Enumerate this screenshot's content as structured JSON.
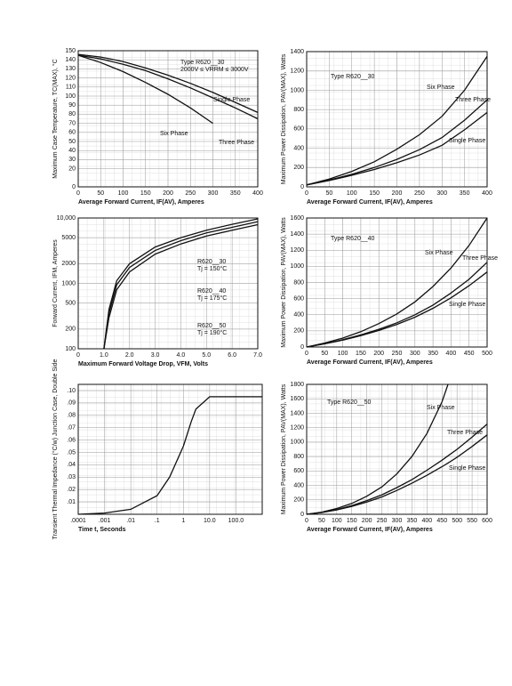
{
  "chart_data": [
    {
      "type": "line",
      "x_label": "Average Forward Current, IF(AV), Amperes",
      "y_label": "Maximum Case Temperature, TC(MAX), °C",
      "annotations": [
        "Type R620__30",
        "2000V ≤ VRRM ≤ 3000V"
      ],
      "x": [
        0,
        50,
        100,
        150,
        200,
        250,
        300,
        350,
        400
      ],
      "series": [
        {
          "name": "Single Phase",
          "color": "#111",
          "values": [
            146,
            143,
            138,
            131,
            123,
            114,
            104,
            93,
            82
          ]
        },
        {
          "name": "Three Phase",
          "color": "#111",
          "values": [
            145,
            141,
            135,
            128,
            119,
            109,
            98,
            87,
            75
          ]
        },
        {
          "name": "Six Phase",
          "color": "#111",
          "values": [
            145,
            137,
            127,
            115,
            102,
            87,
            70,
            null,
            null
          ]
        }
      ],
      "xlim": [
        0,
        400
      ],
      "xticks": [
        0,
        50,
        100,
        150,
        200,
        250,
        300,
        350,
        400
      ],
      "ylim": [
        0,
        150
      ],
      "yticks": [
        0,
        20,
        30,
        40,
        50,
        60,
        70,
        80,
        90,
        100,
        110,
        120,
        130,
        140,
        150
      ],
      "grid": true
    },
    {
      "type": "line",
      "x_label": "Average Forward Current, IF(AV), Amperes",
      "y_label": "Maximum Power Dissipation, PAV(MAX), Watts",
      "annotations": [
        "Type R620__30"
      ],
      "x": [
        0,
        50,
        100,
        150,
        200,
        250,
        300,
        350,
        400
      ],
      "series": [
        {
          "name": "Six Phase",
          "color": "#111",
          "values": [
            20,
            80,
            160,
            260,
            390,
            540,
            730,
            1000,
            1350
          ]
        },
        {
          "name": "Three Phase",
          "color": "#111",
          "values": [
            20,
            70,
            130,
            200,
            285,
            385,
            510,
            690,
            900
          ]
        },
        {
          "name": "Single Phase",
          "color": "#111",
          "values": [
            20,
            65,
            120,
            180,
            250,
            330,
            430,
            590,
            770
          ]
        }
      ],
      "xlim": [
        0,
        400
      ],
      "xticks": [
        0,
        50,
        100,
        150,
        200,
        250,
        300,
        350,
        400
      ],
      "ylim": [
        0,
        1400
      ],
      "yticks": [
        0,
        200,
        400,
        600,
        800,
        1000,
        1200,
        1400
      ],
      "grid": true
    },
    {
      "type": "line",
      "x_label": "Maximum Forward Voltage Drop, VFM, Volts",
      "y_label": "Forward Current, IFM, Amperes",
      "annotations": [
        "Tj = 150°C",
        "Tj = 175°C",
        "Tj = 190°C"
      ],
      "x": [
        1.0,
        1.2,
        1.5,
        2,
        3,
        4,
        5,
        6,
        7
      ],
      "series": [
        {
          "name": "R620__30",
          "color": "#111",
          "values": [
            100,
            400,
            1100,
            2000,
            3600,
            5000,
            6500,
            8000,
            9700
          ]
        },
        {
          "name": "R620__40",
          "color": "#111",
          "values": [
            100,
            350,
            950,
            1750,
            3200,
            4500,
            5900,
            7200,
            8800
          ]
        },
        {
          "name": "R620__50",
          "color": "#111",
          "values": [
            100,
            300,
            800,
            1500,
            2800,
            4000,
            5300,
            6500,
            7900
          ]
        }
      ],
      "xlim": [
        0,
        7
      ],
      "xticks": [
        0,
        {
          "value": 1,
          "label": "1.0"
        },
        {
          "value": 2,
          "label": "2.0"
        },
        {
          "value": 3,
          "label": "3.0"
        },
        {
          "value": 4,
          "label": "4.0"
        },
        {
          "value": 5,
          "label": "5.0"
        },
        {
          "value": 6,
          "label": "6.0"
        },
        {
          "value": 7,
          "label": "7.0"
        }
      ],
      "ylim": [
        100,
        10000
      ],
      "ylog": true,
      "yticks": [
        100,
        200,
        500,
        1000,
        2000,
        5000,
        {
          "value": 10000,
          "label": "10,000"
        }
      ],
      "grid": true
    },
    {
      "type": "line",
      "x_label": "Average Forward Current, IF(AV), Amperes",
      "y_label": "Maximum Power Dissipation, PAV(MAX), Watts",
      "annotations": [
        "Type R620__40"
      ],
      "x": [
        0,
        50,
        100,
        150,
        200,
        250,
        300,
        350,
        400,
        450,
        500
      ],
      "series": [
        {
          "name": "Six Phase",
          "color": "#111",
          "values": [
            0,
            50,
            110,
            190,
            290,
            410,
            560,
            750,
            980,
            1260,
            1600
          ]
        },
        {
          "name": "Three Phase",
          "color": "#111",
          "values": [
            0,
            40,
            90,
            150,
            220,
            300,
            400,
            520,
            670,
            840,
            1050
          ]
        },
        {
          "name": "Single Phase",
          "color": "#111",
          "values": [
            0,
            40,
            85,
            140,
            205,
            280,
            370,
            480,
            610,
            760,
            930
          ]
        }
      ],
      "xlim": [
        0,
        500
      ],
      "xticks": [
        0,
        50,
        100,
        150,
        200,
        250,
        300,
        350,
        400,
        450,
        500
      ],
      "ylim": [
        0,
        1600
      ],
      "yticks": [
        0,
        200,
        400,
        600,
        800,
        1000,
        1200,
        1400,
        1600
      ],
      "grid": true
    },
    {
      "type": "line",
      "x_label": "Time t, Seconds",
      "y_label": "Transient Thermal Impedance (°C/w) Junction Case, Double Side",
      "annotations": [],
      "x": [
        0.0001,
        0.001,
        0.01,
        0.1,
        0.3,
        1,
        2,
        3,
        10,
        100,
        1000
      ],
      "series": [
        {
          "name": "",
          "color": "#111",
          "values": [
            0,
            0.001,
            0.004,
            0.015,
            0.03,
            0.055,
            0.075,
            0.085,
            0.095,
            0.095,
            0.095
          ]
        }
      ],
      "xlim": [
        0.0001,
        1000
      ],
      "xlog": true,
      "xticks": [
        {
          "value": 0.0001,
          "label": ".0001"
        },
        {
          "value": 0.001,
          "label": ".001"
        },
        {
          "value": 0.01,
          "label": ".01"
        },
        {
          "value": 0.1,
          "label": ".1"
        },
        1,
        {
          "value": 10,
          "label": "10.0"
        },
        {
          "value": 100,
          "label": "100.0"
        }
      ],
      "ylim": [
        0,
        0.105
      ],
      "yticks": [
        {
          "value": 0.01,
          "label": ".01"
        },
        {
          "value": 0.02,
          "label": ".02"
        },
        {
          "value": 0.03,
          "label": ".03"
        },
        {
          "value": 0.04,
          "label": ".04"
        },
        {
          "value": 0.05,
          "label": ".05"
        },
        {
          "value": 0.06,
          "label": ".06"
        },
        {
          "value": 0.07,
          "label": ".07"
        },
        {
          "value": 0.08,
          "label": ".08"
        },
        {
          "value": 0.09,
          "label": ".09"
        },
        {
          "value": 0.1,
          "label": ".10"
        }
      ],
      "grid": true
    },
    {
      "type": "line",
      "x_label": "Average Forward Current, IF(AV), Amperes",
      "y_label": "Maximum Power Dissipation, PAV(MAX), Watts",
      "annotations": [
        "Type R620__50"
      ],
      "x": [
        0,
        50,
        100,
        150,
        200,
        250,
        300,
        350,
        400,
        450,
        470,
        500,
        550,
        600
      ],
      "series": [
        {
          "name": "Six Phase",
          "color": "#111",
          "values": [
            0,
            30,
            80,
            150,
            250,
            380,
            560,
            800,
            1120,
            1560,
            1800,
            null,
            null,
            null
          ]
        },
        {
          "name": "Three Phase",
          "color": "#111",
          "values": [
            0,
            25,
            65,
            120,
            190,
            270,
            370,
            480,
            610,
            750,
            810,
            900,
            1070,
            1250
          ]
        },
        {
          "name": "Single Phase",
          "color": "#111",
          "values": [
            0,
            25,
            60,
            110,
            170,
            240,
            330,
            430,
            540,
            660,
            710,
            790,
            940,
            1100
          ]
        }
      ],
      "xlim": [
        0,
        600
      ],
      "xticks": [
        0,
        50,
        100,
        150,
        200,
        250,
        300,
        350,
        400,
        450,
        500,
        550,
        600
      ],
      "ylim": [
        0,
        1800
      ],
      "yticks": [
        0,
        200,
        400,
        600,
        800,
        1000,
        1200,
        1400,
        1600,
        1800
      ],
      "grid": true
    }
  ]
}
